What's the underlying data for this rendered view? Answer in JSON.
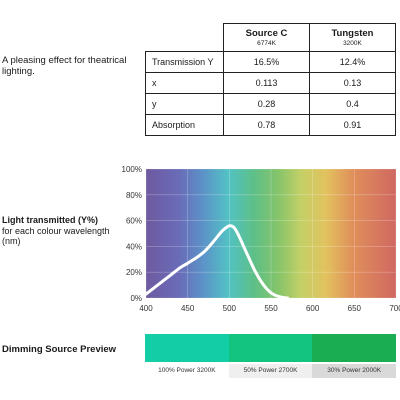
{
  "description": "A pleasing effect for theatrical lighting.",
  "table": {
    "columns": [
      {
        "name": "Source C",
        "temp": "6774K"
      },
      {
        "name": "Tungsten",
        "temp": "3200K"
      }
    ],
    "rows": [
      {
        "label": "Transmission Y",
        "values": [
          "16.5%",
          "12.4%"
        ]
      },
      {
        "label": "x",
        "values": [
          "0.113",
          "0.13"
        ]
      },
      {
        "label": "y",
        "values": [
          "0.28",
          "0.4"
        ]
      },
      {
        "label": "Absorption",
        "values": [
          "0.78",
          "0.91"
        ]
      }
    ]
  },
  "chart_label": {
    "title": "Light transmitted (Y%)",
    "subtitle": "for each colour wavelength (nm)"
  },
  "chart_data": {
    "type": "line",
    "x": [
      400,
      410,
      420,
      430,
      440,
      450,
      460,
      470,
      480,
      490,
      495,
      500,
      505,
      510,
      520,
      530,
      540,
      550,
      560,
      570
    ],
    "y": [
      3,
      8,
      13,
      18,
      23,
      27,
      31,
      36,
      43,
      51,
      54,
      56,
      55,
      50,
      36,
      22,
      11,
      4,
      1,
      0
    ],
    "xlim": [
      400,
      700
    ],
    "ylim": [
      0,
      100
    ],
    "x_ticks": [
      "400",
      "450",
      "500",
      "550",
      "600",
      "650",
      "700"
    ],
    "y_ticks": [
      "0%",
      "20%",
      "40%",
      "60%",
      "80%",
      "100%"
    ],
    "line_color": "#ffffff"
  },
  "dimming": {
    "title": "Dimming Source Preview",
    "items": [
      {
        "label": "100% Power 3200K",
        "color": "#12cda6",
        "label_bg": "#ffffff"
      },
      {
        "label": "50% Power 2700K",
        "color": "#12c480",
        "label_bg": "#efefef"
      },
      {
        "label": "30% Power 2000K",
        "color": "#1aad52",
        "label_bg": "#d9d9d9"
      }
    ]
  }
}
